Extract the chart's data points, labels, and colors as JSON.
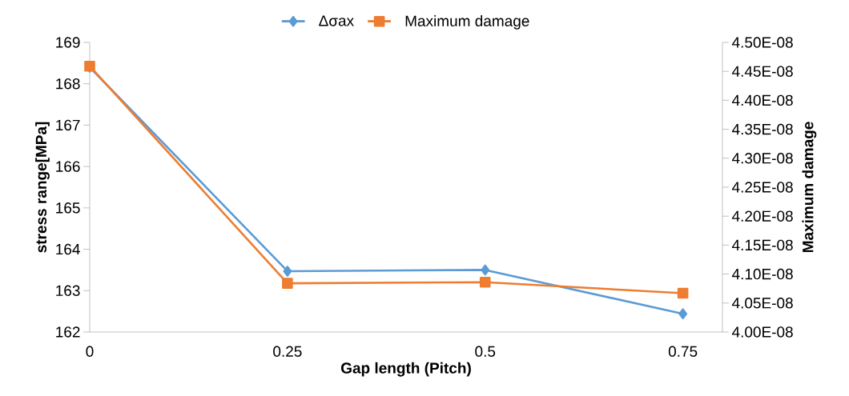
{
  "chart_data": {
    "type": "line",
    "xlabel": "Gap length (Pitch)",
    "ylabel": "stress range[MPa]",
    "y2label": "Maximum damage",
    "categories": [
      "0",
      "0.25",
      "0.5",
      "0.75"
    ],
    "series": [
      {
        "name": "Δσax",
        "color": "#5b9bd5",
        "marker": "diamond",
        "values": [
          168.4,
          163.47,
          163.5,
          162.44
        ]
      },
      {
        "name": "Maximum damage",
        "color": "#ed7d31",
        "marker": "square",
        "axis": "y2",
        "values": [
          4.459e-08,
          4.084e-08,
          4.086e-08,
          4.067e-08
        ]
      }
    ],
    "ylim": [
      162,
      169
    ],
    "yticks": [
      162,
      163,
      164,
      165,
      166,
      167,
      168,
      169
    ],
    "y2lim": [
      4e-08,
      4.5e-08
    ],
    "y2ticks": [
      {
        "value": 4e-08,
        "label": "4.00E-08"
      },
      {
        "value": 4.05e-08,
        "label": "4.05E-08"
      },
      {
        "value": 4.1e-08,
        "label": "4.10E-08"
      },
      {
        "value": 4.15e-08,
        "label": "4.15E-08"
      },
      {
        "value": 4.2e-08,
        "label": "4.20E-08"
      },
      {
        "value": 4.25e-08,
        "label": "4.25E-08"
      },
      {
        "value": 4.3e-08,
        "label": "4.30E-08"
      },
      {
        "value": 4.35e-08,
        "label": "4.35E-08"
      },
      {
        "value": 4.4e-08,
        "label": "4.40E-08"
      },
      {
        "value": 4.45e-08,
        "label": "4.45E-08"
      },
      {
        "value": 4.5e-08,
        "label": "4.50E-08"
      }
    ],
    "legend": "top",
    "grid": false,
    "line_style": "solid"
  }
}
